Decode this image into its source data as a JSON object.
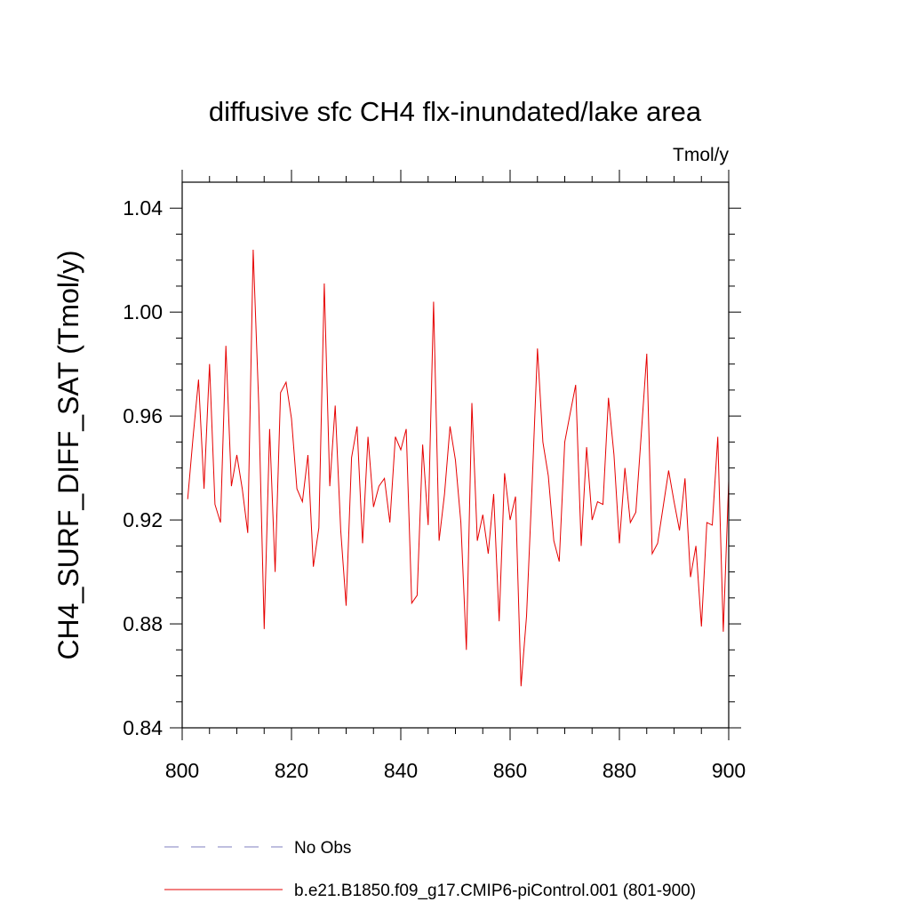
{
  "chart_data": {
    "type": "line",
    "title": "diffusive sfc CH4 flx-inundated/lake area",
    "units": "Tmol/y",
    "xlabel": "",
    "ylabel": "CH4_SURF_DIFF_SAT  (Tmol/y)",
    "xlim": [
      800,
      900
    ],
    "ylim": [
      0.84,
      1.05
    ],
    "x_ticks": [
      800,
      820,
      840,
      860,
      880,
      900
    ],
    "y_ticks": [
      0.84,
      0.88,
      0.92,
      0.96,
      1.0,
      1.04
    ],
    "x_tick_labels": [
      "800",
      "820",
      "840",
      "860",
      "880",
      "900"
    ],
    "y_tick_labels": [
      "0.84",
      "0.88",
      "0.92",
      "0.96",
      "1.00",
      "1.04"
    ],
    "grid": false,
    "legend": {
      "placement": "bottom",
      "entries": [
        {
          "label": "No Obs",
          "color": "#7f7fbf",
          "style": "dashed"
        },
        {
          "label": "b.e21.B1850.f09_g17.CMIP6-piControl.001 (801-900)",
          "color": "#e60000",
          "style": "solid"
        }
      ]
    },
    "series": [
      {
        "name": "b.e21.B1850.f09_g17.CMIP6-piControl.001 (801-900)",
        "color": "#e60000",
        "x": [
          801,
          802,
          803,
          804,
          805,
          806,
          807,
          808,
          809,
          810,
          811,
          812,
          813,
          814,
          815,
          816,
          817,
          818,
          819,
          820,
          821,
          822,
          823,
          824,
          825,
          826,
          827,
          828,
          829,
          830,
          831,
          832,
          833,
          834,
          835,
          836,
          837,
          838,
          839,
          840,
          841,
          842,
          843,
          844,
          845,
          846,
          847,
          848,
          849,
          850,
          851,
          852,
          853,
          854,
          855,
          856,
          857,
          858,
          859,
          860,
          861,
          862,
          863,
          864,
          865,
          866,
          867,
          868,
          869,
          870,
          871,
          872,
          873,
          874,
          875,
          876,
          877,
          878,
          879,
          880,
          881,
          882,
          883,
          884,
          885,
          886,
          887,
          888,
          889,
          890,
          891,
          892,
          893,
          894,
          895,
          896,
          897,
          898,
          899,
          900
        ],
        "values": [
          0.928,
          0.952,
          0.974,
          0.932,
          0.98,
          0.926,
          0.919,
          0.987,
          0.933,
          0.945,
          0.932,
          0.915,
          1.024,
          0.965,
          0.878,
          0.955,
          0.9,
          0.969,
          0.973,
          0.959,
          0.932,
          0.927,
          0.945,
          0.902,
          0.917,
          1.011,
          0.933,
          0.964,
          0.916,
          0.887,
          0.944,
          0.956,
          0.911,
          0.952,
          0.925,
          0.933,
          0.936,
          0.919,
          0.952,
          0.947,
          0.955,
          0.888,
          0.891,
          0.949,
          0.918,
          1.004,
          0.912,
          0.93,
          0.956,
          0.943,
          0.919,
          0.87,
          0.965,
          0.912,
          0.922,
          0.907,
          0.93,
          0.881,
          0.938,
          0.92,
          0.929,
          0.856,
          0.883,
          0.932,
          0.986,
          0.95,
          0.937,
          0.912,
          0.904,
          0.95,
          0.961,
          0.972,
          0.91,
          0.948,
          0.92,
          0.927,
          0.926,
          0.967,
          0.945,
          0.911,
          0.94,
          0.919,
          0.923,
          0.953,
          0.984,
          0.907,
          0.911,
          0.925,
          0.939,
          0.927,
          0.916,
          0.936,
          0.898,
          0.91,
          0.879,
          0.919,
          0.918,
          0.952,
          0.877,
          0.935
        ]
      }
    ]
  }
}
